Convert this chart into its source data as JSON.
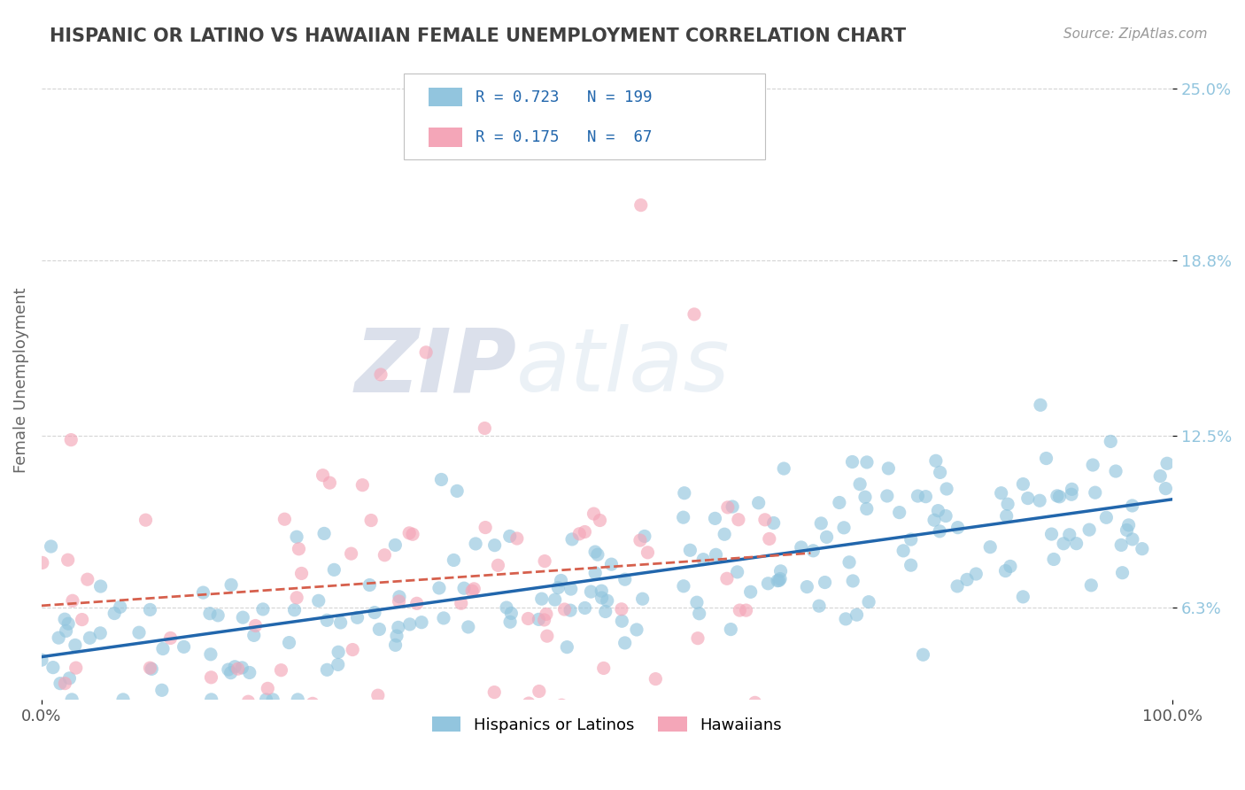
{
  "title": "HISPANIC OR LATINO VS HAWAIIAN FEMALE UNEMPLOYMENT CORRELATION CHART",
  "source_text": "Source: ZipAtlas.com",
  "ylabel": "Female Unemployment",
  "xmin": 0.0,
  "xmax": 1.0,
  "ymin": 0.03,
  "ymax": 0.26,
  "yticks": [
    0.063,
    0.125,
    0.188,
    0.25
  ],
  "ytick_labels": [
    "6.3%",
    "12.5%",
    "18.8%",
    "25.0%"
  ],
  "xtick_labels": [
    "0.0%",
    "100.0%"
  ],
  "blue_color": "#92c5de",
  "pink_color": "#f4a6b8",
  "blue_line_color": "#2166ac",
  "pink_line_color": "#d6604d",
  "blue_r": 0.723,
  "pink_r": 0.175,
  "blue_n": 199,
  "pink_n": 67,
  "watermark_zip": "ZIP",
  "watermark_atlas": "atlas",
  "grid_color": "#d0d0d0",
  "background_color": "#ffffff",
  "title_color": "#404040",
  "source_color": "#999999",
  "axis_label_color": "#666666",
  "scatter_alpha": 0.65,
  "scatter_size": 120,
  "legend_blue_label": "R = 0.723   N = 199",
  "legend_pink_label": "R = 0.175   N =  67",
  "legend_text_color": "#2166ac",
  "bottom_legend_blue": "Hispanics or Latinos",
  "bottom_legend_pink": "Hawaiians"
}
